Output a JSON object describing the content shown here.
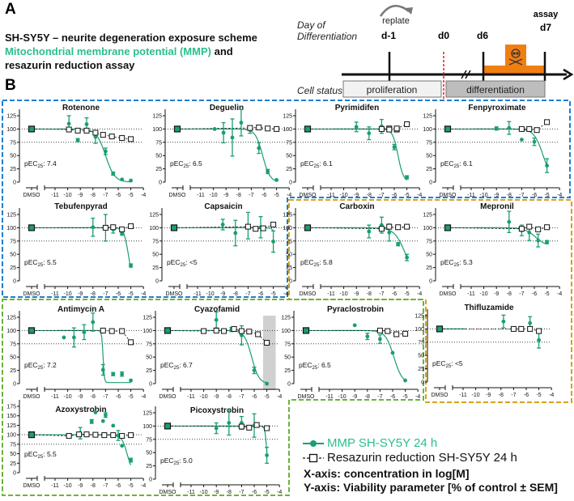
{
  "panel_a": {
    "label": "A",
    "title": "SH-SY5Y – neurite degeneration exposure scheme",
    "subtitle_green": "Mitochondrial membrane potential (MMP)",
    "subtitle_and": "and",
    "subtitle_line3": "resazurin reduction assay",
    "day_label_1": "Day of",
    "day_label_2": "Differentiation",
    "cell_status_label": "Cell status",
    "replate": "replate",
    "days": [
      "d-1",
      "d0",
      "d6",
      "d7"
    ],
    "assay": "assay",
    "phases": [
      "proliferation",
      "differentiation"
    ],
    "exposure_icon": "skull-toxic-icon",
    "colors": {
      "exposure": "#f07f12",
      "d0_line": "#e02020"
    }
  },
  "panel_b": {
    "label": "B"
  },
  "legend": {
    "mmp": "MMP SH-SY5Y 24 h",
    "resazurin": "Resazurin reduction SH-SY5Y 24 h",
    "xaxis_note": "X-axis: concentration in log[M]",
    "yaxis_note": "Y-axis: Viability parameter  [% of control ± SEM]"
  },
  "colors": {
    "mmp": "#1a9e72",
    "mmp_text": "#2bbf8a",
    "box_blue": "#1f7fd0",
    "box_orange": "#d9a21b",
    "box_green": "#6bb43a",
    "highlight": "#d0d0d0"
  },
  "chart_data": [
    {
      "type": "scatter",
      "title": "Rotenone",
      "pec_prefix": "pEC",
      "pec_sub": "25",
      "pec": ": 7.4",
      "ymax": 125,
      "xlabel": "log[M]",
      "x_ticks": [
        "DMSO",
        "-11",
        "-10",
        "-9",
        "-8",
        "-7",
        "-6",
        "-5",
        "-4"
      ],
      "mmp": [
        [
          -9.9,
          110,
          15
        ],
        [
          -9.9,
          99,
          0
        ],
        [
          -9.2,
          79,
          3
        ],
        [
          -8.5,
          109,
          12
        ],
        [
          -8.5,
          97,
          0
        ],
        [
          -7.8,
          85,
          12
        ],
        [
          -7.0,
          58,
          6
        ],
        [
          -6.4,
          16,
          3
        ],
        [
          -5.7,
          5,
          0
        ],
        [
          -5,
          3,
          0
        ]
      ],
      "resazurin": [
        [
          -9.9,
          99
        ],
        [
          -9.2,
          97
        ],
        [
          -8.5,
          97
        ],
        [
          -7.8,
          93
        ],
        [
          -7.2,
          89
        ],
        [
          -6.5,
          86
        ],
        [
          -5.7,
          83
        ],
        [
          -5,
          81
        ]
      ],
      "fit": {
        "top": 100,
        "bottom": 0,
        "logec50": -7.0,
        "hill": 1.2
      }
    },
    {
      "type": "scatter",
      "title": "Deguelin",
      "pec_prefix": "pEC",
      "pec_sub": "25",
      "pec": ": 6.5",
      "ymax": 125,
      "mmp": [
        [
          -9.9,
          100,
          0
        ],
        [
          -9.2,
          93,
          19
        ],
        [
          -8.5,
          84,
          35
        ],
        [
          -7.8,
          112,
          25
        ],
        [
          -7.1,
          98,
          6
        ],
        [
          -6.4,
          64,
          10
        ],
        [
          -5.7,
          20,
          4
        ],
        [
          -5,
          4,
          0
        ]
      ],
      "resazurin": [
        [
          -7.1,
          102
        ],
        [
          -6.4,
          103
        ],
        [
          -5.7,
          101
        ],
        [
          -5,
          100
        ]
      ],
      "fit": {
        "top": 100,
        "bottom": 0,
        "logec50": -6.1,
        "hill": 1.5
      }
    },
    {
      "type": "scatter",
      "title": "Pyrimidifen",
      "pec_prefix": "pEC",
      "pec_sub": "25",
      "pec": ": 6.1",
      "ymax": 125,
      "mmp": [
        [
          -9,
          104,
          9
        ],
        [
          -8,
          92,
          12
        ],
        [
          -7,
          105,
          13
        ],
        [
          -6,
          66,
          5
        ],
        [
          -5,
          9,
          3
        ]
      ],
      "resazurin": [
        [
          -7,
          100
        ],
        [
          -6.4,
          101
        ],
        [
          -6.4,
          99
        ],
        [
          -5.8,
          99
        ],
        [
          -5.8,
          101
        ],
        [
          -5,
          109
        ]
      ],
      "fit": {
        "top": 100,
        "bottom": 0,
        "logec50": -5.7,
        "hill": 2
      }
    },
    {
      "type": "scatter",
      "title": "Fenpyroximate",
      "pec_prefix": "pEC",
      "pec_sub": "25",
      "pec": ": 6.1",
      "ymax": 125,
      "mmp": [
        [
          -9,
          101,
          3
        ],
        [
          -8,
          102,
          12
        ],
        [
          -7,
          80,
          0
        ],
        [
          -6,
          76,
          7
        ],
        [
          -5,
          31,
          13
        ]
      ],
      "resazurin": [
        [
          -7,
          100
        ],
        [
          -6.4,
          100
        ],
        [
          -5.8,
          98
        ],
        [
          -5,
          113
        ]
      ],
      "fit": {
        "top": 100,
        "bottom": 0,
        "logec50": -5.3,
        "hill": 1.2
      }
    },
    {
      "type": "scatter",
      "title": "Tebufenpyrad",
      "pec_prefix": "pEC",
      "pec_sub": "25",
      "pec": ": 5.5",
      "ymax": 125,
      "mmp": [
        [
          -8,
          101,
          17
        ],
        [
          -7,
          100,
          25
        ],
        [
          -6.4,
          97,
          7
        ],
        [
          -5.7,
          89,
          3
        ],
        [
          -5,
          29,
          3
        ]
      ],
      "resazurin": [
        [
          -7,
          100
        ],
        [
          -6.4,
          101
        ],
        [
          -5.7,
          97
        ],
        [
          -5,
          103
        ]
      ],
      "fit": {
        "top": 100,
        "bottom": 0,
        "logec50": -5.2,
        "hill": 2.5
      }
    },
    {
      "type": "scatter",
      "title": "Capsaicin",
      "pec_prefix": "pEC",
      "pec_sub": "25",
      "pec": ": <5",
      "ymax": 125,
      "mmp": [
        [
          -9,
          106,
          10
        ],
        [
          -8,
          90,
          24
        ],
        [
          -7,
          104,
          25
        ],
        [
          -6,
          101,
          20
        ],
        [
          -5,
          74,
          20
        ]
      ],
      "resazurin": [
        [
          -7,
          102
        ],
        [
          -6.4,
          98
        ],
        [
          -5.8,
          99
        ],
        [
          -5,
          106
        ]
      ],
      "fit": {
        "top": 100,
        "bottom": 0,
        "logec50": -4.6,
        "hill": 3
      }
    },
    {
      "type": "scatter",
      "title": "Carboxin",
      "pec_prefix": "pEC",
      "pec_sub": "25",
      "pec": ": 5.8",
      "ymax": 125,
      "mmp": [
        [
          -8,
          93,
          12
        ],
        [
          -7,
          105,
          15
        ],
        [
          -6.4,
          91,
          16
        ],
        [
          -5.7,
          69,
          3
        ],
        [
          -5,
          44,
          6
        ]
      ],
      "resazurin": [
        [
          -7,
          98
        ],
        [
          -6.4,
          102
        ],
        [
          -5.7,
          101
        ],
        [
          -5,
          102
        ]
      ],
      "fit": {
        "top": 100,
        "bottom": 0,
        "logec50": -5.1,
        "hill": 1
      }
    },
    {
      "type": "scatter",
      "title": "Mepronil",
      "pec_prefix": "pEC",
      "pec_sub": "25",
      "pec": ": 5.3",
      "ymax": 125,
      "mmp": [
        [
          -8,
          111,
          20
        ],
        [
          -7,
          95,
          10
        ],
        [
          -6.4,
          91,
          15
        ],
        [
          -5.7,
          76,
          12
        ],
        [
          -5,
          73,
          3
        ]
      ],
      "resazurin": [
        [
          -7,
          98
        ],
        [
          -6.4,
          102
        ],
        [
          -5.7,
          97
        ],
        [
          -5,
          101
        ]
      ],
      "fit": {
        "top": 100,
        "bottom": 65,
        "logec50": -5.9,
        "hill": 1
      }
    },
    {
      "type": "scatter",
      "title": "Antimycin A",
      "pec_prefix": "pEC",
      "pec_sub": "25",
      "pec": ": 7.2",
      "ymax": 125,
      "mmp": [
        [
          -10.3,
          87,
          0
        ],
        [
          -9.5,
          87,
          18
        ],
        [
          -8.7,
          97,
          14
        ],
        [
          -8,
          116,
          17
        ],
        [
          -7.2,
          26,
          10
        ],
        [
          -6.4,
          18,
          3
        ],
        [
          -5.7,
          18,
          4
        ],
        [
          -5,
          6,
          0
        ]
      ],
      "resazurin": [
        [
          -7.2,
          100
        ],
        [
          -6.5,
          99
        ],
        [
          -5.7,
          99
        ],
        [
          -5,
          78
        ]
      ],
      "fit": {
        "top": 100,
        "bottom": 2,
        "logec50": -7.2,
        "hill": 8
      }
    },
    {
      "type": "scatter",
      "title": "Cyazofamid",
      "pec_prefix": "pEC",
      "pec_sub": "25",
      "pec": ": 6.7",
      "ymax": 125,
      "highlight_range": [
        -5.3,
        -4.3
      ],
      "mmp": [
        [
          -9,
          120,
          15
        ],
        [
          -7.8,
          102,
          4
        ],
        [
          -7,
          91,
          18
        ],
        [
          -6,
          25,
          6
        ],
        [
          -5,
          0,
          0
        ]
      ],
      "resazurin": [
        [
          -10,
          99
        ],
        [
          -9,
          100
        ],
        [
          -8.4,
          99
        ],
        [
          -7.6,
          103
        ],
        [
          -7,
          99
        ],
        [
          -6.4,
          98
        ],
        [
          -5.7,
          93
        ],
        [
          -5,
          77
        ]
      ],
      "fit": {
        "top": 100,
        "bottom": 0,
        "logec50": -6.2,
        "hill": 1.5
      }
    },
    {
      "type": "scatter",
      "title": "Pyraclostrobin",
      "pec_prefix": "pEC",
      "pec_sub": "25",
      "pec": ": 6.5",
      "ymax": 125,
      "mmp": [
        [
          -9,
          110,
          0
        ],
        [
          -8,
          89,
          6
        ],
        [
          -7,
          84,
          8
        ],
        [
          -6,
          58,
          0
        ],
        [
          -5,
          6,
          0
        ]
      ],
      "resazurin": [
        [
          -7,
          100
        ],
        [
          -6.4,
          99
        ],
        [
          -5.7,
          93
        ],
        [
          -5,
          94
        ]
      ],
      "fit": {
        "top": 100,
        "bottom": 0,
        "logec50": -5.9,
        "hill": 1.3
      }
    },
    {
      "type": "scatter",
      "title": "Thifluzamide",
      "pec_prefix": "pEC",
      "pec_sub": "25",
      "pec": ": <5",
      "ymax": 125,
      "mmp": [
        [
          -7.8,
          114,
          12
        ],
        [
          -5.7,
          111,
          12
        ],
        [
          -5,
          79,
          15
        ]
      ],
      "resazurin": [
        [
          -7,
          100
        ],
        [
          -6.4,
          100
        ],
        [
          -5.7,
          100
        ],
        [
          -5,
          96
        ]
      ],
      "fit": null
    },
    {
      "type": "scatter",
      "title": "Azoxystrobin",
      "pec_prefix": "pEC",
      "pec_sub": "25",
      "pec": ": 5.5",
      "ymax": 175,
      "mmp": [
        [
          -9,
          104,
          15
        ],
        [
          -8.1,
          135,
          5
        ],
        [
          -7.8,
          159,
          0
        ],
        [
          -7.2,
          136,
          0
        ],
        [
          -7,
          152,
          6
        ],
        [
          -6.4,
          124,
          0
        ],
        [
          -6,
          98,
          13
        ],
        [
          -5.7,
          71,
          0
        ],
        [
          -5,
          33,
          5
        ]
      ],
      "resazurin": [
        [
          -9.9,
          97
        ],
        [
          -9.1,
          101
        ],
        [
          -8.5,
          101
        ],
        [
          -7.8,
          100
        ],
        [
          -7.1,
          99
        ],
        [
          -6.4,
          99
        ],
        [
          -5.7,
          97
        ],
        [
          -5,
          99
        ]
      ],
      "fit": {
        "top": 100,
        "bottom": 0,
        "logec50": -5.3,
        "hill": 2
      }
    },
    {
      "type": "scatter",
      "title": "Picoxystrobin",
      "pec_prefix": "pEC",
      "pec_sub": "25",
      "pec": ": 5.0",
      "ymax": 125,
      "mmp": [
        [
          -9,
          96,
          10
        ],
        [
          -8,
          106,
          23
        ],
        [
          -7,
          106,
          12
        ],
        [
          -6,
          101,
          22
        ],
        [
          -5,
          45,
          15
        ]
      ],
      "resazurin": [
        [
          -7,
          99
        ],
        [
          -6.4,
          97
        ],
        [
          -5.8,
          102
        ],
        [
          -5,
          96
        ]
      ],
      "fit": {
        "top": 100,
        "bottom": 0,
        "logec50": -5.0,
        "hill": 6
      }
    }
  ]
}
